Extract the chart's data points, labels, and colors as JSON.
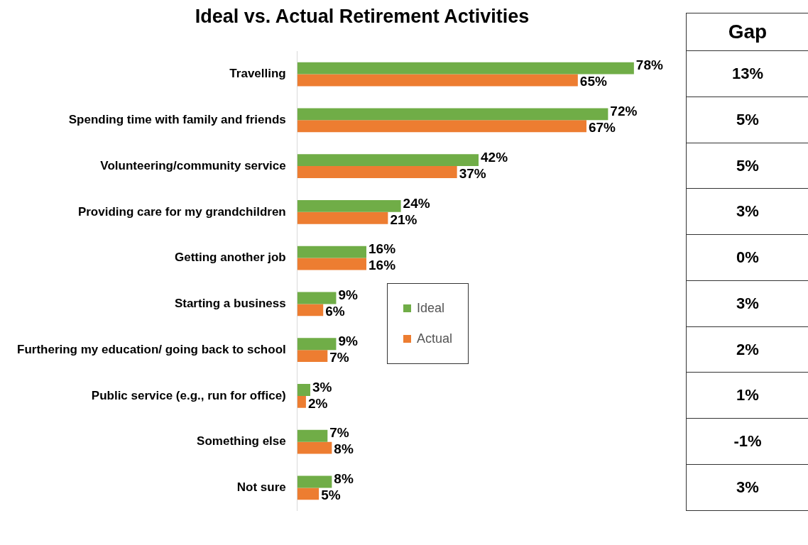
{
  "chart_data": {
    "type": "bar",
    "orientation": "horizontal",
    "title": "Ideal vs. Actual Retirement Activities",
    "categories": [
      "Travelling",
      "Spending time with family and friends",
      "Volunteering/community service",
      "Providing care for my grandchildren",
      "Getting another job",
      "Starting a business",
      "Furthering my education/ going back to school",
      "Public service (e.g., run for office)",
      "Something else",
      "Not sure"
    ],
    "series": [
      {
        "name": "Ideal",
        "color": "#70ad47",
        "values": [
          78,
          72,
          42,
          24,
          16,
          9,
          9,
          3,
          7,
          8
        ],
        "value_labels": [
          "78%",
          "72%",
          "42%",
          "24%",
          "16%",
          "9%",
          "9%",
          "3%",
          "7%",
          "8%"
        ]
      },
      {
        "name": "Actual",
        "color": "#ed7d31",
        "values": [
          65,
          67,
          37,
          21,
          16,
          6,
          7,
          2,
          8,
          5
        ],
        "value_labels": [
          "65%",
          "67%",
          "37%",
          "21%",
          "16%",
          "6%",
          "7%",
          "2%",
          "8%",
          "5%"
        ]
      }
    ],
    "legend": "center",
    "grid": false,
    "annotations": [
      "Gap",
      "13%",
      "5%",
      "5%",
      "3%",
      "0%",
      "3%",
      "2%",
      "1%",
      "-1%",
      "3%"
    ]
  }
}
